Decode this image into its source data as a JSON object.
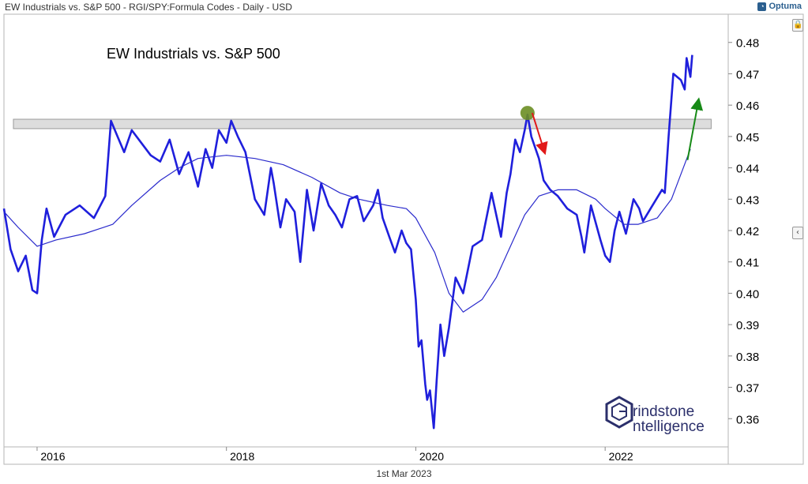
{
  "window": {
    "title": "EW Industrials vs. S&P 500 - RGI/SPY:Formula Codes - Daily - USD",
    "brand": "Optuma",
    "brand_logo": "optuma-logo-icon",
    "lock_icon": "lock-icon",
    "collapse_icon": "chevron-left-icon",
    "footer_date": "1st Mar 2023"
  },
  "watermark": {
    "line1": "rindstone",
    "line2": "ntelligence",
    "icon": "grindstone-hexagon-logo-icon"
  },
  "colors": {
    "price": "#1f1fdc",
    "ma": "#2a2acc",
    "band": "#dddddd",
    "band_border": "#9a9a9a",
    "up_arrow": "#178a17",
    "down_arrow": "#e11919",
    "marker": "#6b8e23"
  },
  "chart_data": {
    "type": "line",
    "title": "EW Industrials vs. S&P 500",
    "xlabel": "",
    "ylabel": "",
    "x_range": [
      2015.65,
      2023.3
    ],
    "ylim": [
      0.351,
      0.489
    ],
    "y_axis_position": "right",
    "x_ticks": [
      {
        "label": "2016",
        "x": 2016.0
      },
      {
        "label": "2018",
        "x": 2018.0
      },
      {
        "label": "2020",
        "x": 2020.0
      },
      {
        "label": "2022",
        "x": 2022.0
      }
    ],
    "y_ticks": [
      0.36,
      0.37,
      0.38,
      0.39,
      0.4,
      0.41,
      0.42,
      0.43,
      0.44,
      0.45,
      0.46,
      0.47,
      0.48
    ],
    "y_tick_labels": [
      "0.36",
      "0.37",
      "0.38",
      "0.39",
      "0.40",
      "0.41",
      "0.42",
      "0.43",
      "0.44",
      "0.45",
      "0.46",
      "0.47",
      "0.48"
    ],
    "grid": false,
    "series": [
      {
        "style": "thick",
        "x": [
          2015.65,
          2015.72,
          2015.8,
          2015.88,
          2015.95,
          2016.0,
          2016.05,
          2016.1,
          2016.18,
          2016.3,
          2016.45,
          2016.6,
          2016.72,
          2016.78,
          2016.85,
          2016.92,
          2017.0,
          2017.1,
          2017.2,
          2017.3,
          2017.4,
          2017.5,
          2017.6,
          2017.7,
          2017.78,
          2017.85,
          2017.92,
          2018.0,
          2018.05,
          2018.12,
          2018.2,
          2018.3,
          2018.4,
          2018.47,
          2018.5,
          2018.57,
          2018.63,
          2018.72,
          2018.78,
          2018.82,
          2018.85,
          2018.92,
          2019.0,
          2019.08,
          2019.15,
          2019.22,
          2019.3,
          2019.38,
          2019.45,
          2019.55,
          2019.6,
          2019.65,
          2019.72,
          2019.78,
          2019.85,
          2019.9,
          2019.95,
          2020.0,
          2020.03,
          2020.06,
          2020.1,
          2020.12,
          2020.15,
          2020.19,
          2020.22,
          2020.26,
          2020.3,
          2020.35,
          2020.42,
          2020.5,
          2020.6,
          2020.7,
          2020.8,
          2020.9,
          2020.96,
          2021.0,
          2021.05,
          2021.1,
          2021.15,
          2021.18,
          2021.22,
          2021.3,
          2021.35,
          2021.42,
          2021.5,
          2021.6,
          2021.7,
          2021.75,
          2021.78,
          2021.85,
          2021.95,
          2022.0,
          2022.05,
          2022.1,
          2022.15,
          2022.22,
          2022.3,
          2022.36,
          2022.4,
          2022.5,
          2022.6,
          2022.63,
          2022.67,
          2022.72,
          2022.8,
          2022.84,
          2022.86,
          2022.9,
          2022.92
        ],
        "values": [
          0.427,
          0.414,
          0.407,
          0.412,
          0.401,
          0.4,
          0.417,
          0.427,
          0.418,
          0.425,
          0.428,
          0.424,
          0.431,
          0.455,
          0.45,
          0.445,
          0.452,
          0.448,
          0.444,
          0.442,
          0.449,
          0.438,
          0.445,
          0.434,
          0.446,
          0.44,
          0.452,
          0.448,
          0.455,
          0.45,
          0.445,
          0.43,
          0.425,
          0.44,
          0.435,
          0.421,
          0.43,
          0.426,
          0.41,
          0.423,
          0.433,
          0.42,
          0.435,
          0.428,
          0.425,
          0.421,
          0.43,
          0.431,
          0.423,
          0.428,
          0.433,
          0.424,
          0.418,
          0.413,
          0.42,
          0.416,
          0.414,
          0.398,
          0.383,
          0.385,
          0.371,
          0.366,
          0.369,
          0.357,
          0.372,
          0.39,
          0.38,
          0.389,
          0.405,
          0.4,
          0.415,
          0.417,
          0.432,
          0.418,
          0.432,
          0.438,
          0.449,
          0.445,
          0.452,
          0.457,
          0.45,
          0.443,
          0.436,
          0.433,
          0.431,
          0.427,
          0.425,
          0.418,
          0.413,
          0.428,
          0.417,
          0.412,
          0.41,
          0.42,
          0.426,
          0.419,
          0.43,
          0.427,
          0.423,
          0.428,
          0.433,
          0.432,
          0.45,
          0.47,
          0.468,
          0.465,
          0.475,
          0.469,
          0.476
        ]
      },
      {
        "style": "thin",
        "x": [
          2015.65,
          2015.8,
          2016.0,
          2016.2,
          2016.5,
          2016.8,
          2017.0,
          2017.3,
          2017.5,
          2017.7,
          2018.0,
          2018.3,
          2018.6,
          2018.9,
          2019.2,
          2019.4,
          2019.7,
          2019.9,
          2020.0,
          2020.2,
          2020.35,
          2020.5,
          2020.7,
          2020.85,
          2021.0,
          2021.15,
          2021.3,
          2021.5,
          2021.7,
          2021.9,
          2022.0,
          2022.2,
          2022.35,
          2022.55,
          2022.7,
          2022.9
        ],
        "values": [
          0.426,
          0.421,
          0.415,
          0.417,
          0.419,
          0.422,
          0.428,
          0.436,
          0.44,
          0.443,
          0.444,
          0.443,
          0.441,
          0.437,
          0.432,
          0.43,
          0.428,
          0.427,
          0.424,
          0.413,
          0.4,
          0.394,
          0.398,
          0.405,
          0.415,
          0.425,
          0.431,
          0.433,
          0.433,
          0.43,
          0.427,
          0.422,
          0.422,
          0.424,
          0.43,
          0.446
        ]
      }
    ],
    "resistance_band": {
      "y_low": 0.4525,
      "y_high": 0.4555,
      "x_start": 2015.75,
      "x_end": 2023.12
    },
    "annotations": [
      {
        "type": "circle",
        "x": 2021.18,
        "y": 0.4575,
        "color": "#6b8e23"
      },
      {
        "type": "arrow",
        "direction": "down",
        "from": [
          2021.23,
          0.4575
        ],
        "to": [
          2021.35,
          0.446
        ],
        "color": "#e11919"
      },
      {
        "type": "arrow",
        "direction": "up",
        "from": [
          2022.87,
          0.4425
        ],
        "to": [
          2022.98,
          0.4605
        ],
        "color": "#178a17"
      }
    ]
  }
}
